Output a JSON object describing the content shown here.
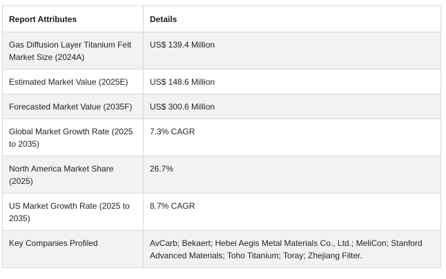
{
  "table": {
    "headers": [
      "Report Attributes",
      "Details"
    ],
    "rows": [
      {
        "attribute": "Gas Diffusion Layer Titanium Felt Market Size (2024A)",
        "details": "US$ 139.4 Million"
      },
      {
        "attribute": "Estimated Market Value (2025E)",
        "details": "US$ 148.6  Million"
      },
      {
        "attribute": "Forecasted Market Value (2035F)",
        "details": "US$ 300.6  Million"
      },
      {
        "attribute": "Global Market Growth Rate (2025 to 2035)",
        "details": "7.3% CAGR"
      },
      {
        "attribute": "North America Market Share (2025)",
        "details": "26.7%"
      },
      {
        "attribute": "US Market Growth Rate (2025 to 2035)",
        "details": "8.7% CAGR"
      },
      {
        "attribute": "Key Companies Profiled",
        "details": "AvCarb; Bekaert; Hebei Aegis Metal Materials Co., Ltd.; MeliCon; Stanford Advanced Materials; Toho Titanium; Toray; Zhejiang Filter."
      }
    ]
  }
}
